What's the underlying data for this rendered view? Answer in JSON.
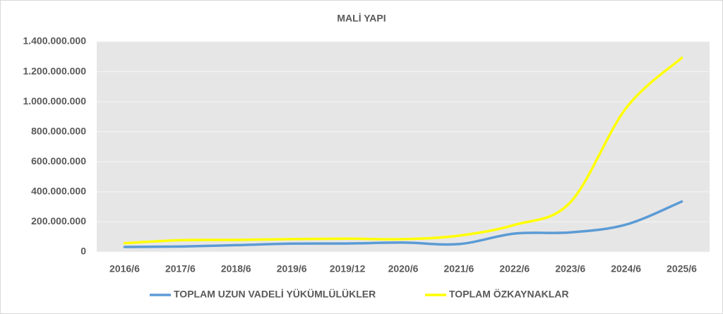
{
  "chart_data": {
    "type": "line",
    "title": "MALİ YAPI",
    "categories": [
      "2016/6",
      "2017/6",
      "2018/6",
      "2019/6",
      "2019/12",
      "2020/6",
      "2021/6",
      "2022/6",
      "2023/6",
      "2024/6",
      "2025/6"
    ],
    "series": [
      {
        "name": "TOPLAM UZUN VADELİ YÜKÜMLÜLÜKLER",
        "color": "#5b9bd5",
        "values": [
          33000000,
          36000000,
          45000000,
          55000000,
          56000000,
          62000000,
          52000000,
          122000000,
          130000000,
          182000000,
          335000000
        ]
      },
      {
        "name": "TOPLAM ÖZKAYNAKLAR",
        "color": "#ffff00",
        "values": [
          58000000,
          78000000,
          80000000,
          85000000,
          88000000,
          85000000,
          108000000,
          180000000,
          330000000,
          957000000,
          1292000000
        ]
      }
    ],
    "ylim": [
      0,
      1400000000
    ],
    "yticks": [
      0,
      {
        "value": 200000000,
        "label": "200.000.000"
      },
      {
        "value": 400000000,
        "label": "400.000.000"
      },
      {
        "value": 600000000,
        "label": "600.000.000"
      },
      {
        "value": 800000000,
        "label": "800.000.000"
      },
      {
        "value": 1000000000,
        "label": "1.000.000.000"
      },
      {
        "value": 1200000000,
        "label": "1.200.000.000"
      },
      {
        "value": 1400000000,
        "label": "1.400.000.000"
      }
    ],
    "grid": true,
    "smooth": true,
    "legend": "bottom"
  }
}
